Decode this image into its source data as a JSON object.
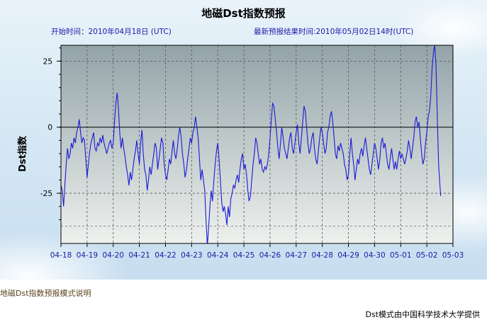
{
  "page": {
    "title": "地磁Dst指数预报",
    "start_time": "开始时间：2010年04月18日 (UTC)",
    "end_time": "最新预报结果时间:2010年05月02日14时(UTC)",
    "footer_link": "地磁Dst指数预报模式说明",
    "footer_credit": "Dst模式由中国科学技术大学提供"
  },
  "colors": {
    "line": "#1a1ad6",
    "plot_top": "#93a3a8",
    "plot_bottom": "#eef1ee",
    "grid": "#555555"
  },
  "chart_data": {
    "type": "line",
    "title": "地磁Dst指数预报",
    "ylabel": "Dst指数",
    "xlabel": "",
    "x_ticks": [
      "04-18",
      "04-19",
      "04-20",
      "04-21",
      "04-22",
      "04-23",
      "04-24",
      "04-25",
      "04-26",
      "04-27",
      "04-28",
      "04-29",
      "04-30",
      "05-01",
      "05-02",
      "05-03"
    ],
    "y_ticks": [
      25,
      0,
      -25
    ],
    "xlim": [
      0,
      15
    ],
    "ylim": [
      -44,
      31
    ],
    "grid": true,
    "zero_line": true,
    "series": [
      {
        "values": [
          [
            0.0,
            -22
          ],
          [
            0.05,
            -24
          ],
          [
            0.1,
            -30
          ],
          [
            0.15,
            -22
          ],
          [
            0.2,
            -14
          ],
          [
            0.25,
            -8
          ],
          [
            0.3,
            -12
          ],
          [
            0.35,
            -10
          ],
          [
            0.4,
            -6
          ],
          [
            0.45,
            -8
          ],
          [
            0.5,
            -4
          ],
          [
            0.55,
            -6
          ],
          [
            0.6,
            -2
          ],
          [
            0.65,
            0
          ],
          [
            0.7,
            3
          ],
          [
            0.75,
            -2
          ],
          [
            0.8,
            -6
          ],
          [
            0.85,
            -4
          ],
          [
            0.9,
            -5
          ],
          [
            0.95,
            -12
          ],
          [
            1.0,
            -19
          ],
          [
            1.05,
            -14
          ],
          [
            1.1,
            -9
          ],
          [
            1.15,
            -6
          ],
          [
            1.2,
            -4
          ],
          [
            1.25,
            -2
          ],
          [
            1.3,
            -8
          ],
          [
            1.35,
            -9
          ],
          [
            1.4,
            -6
          ],
          [
            1.45,
            -7
          ],
          [
            1.5,
            -4
          ],
          [
            1.55,
            -6
          ],
          [
            1.6,
            -3
          ],
          [
            1.65,
            -6
          ],
          [
            1.7,
            -8
          ],
          [
            1.75,
            -10
          ],
          [
            1.8,
            -8
          ],
          [
            1.85,
            -6
          ],
          [
            1.9,
            -5
          ],
          [
            1.95,
            -8
          ],
          [
            2.0,
            -6
          ],
          [
            2.05,
            2
          ],
          [
            2.1,
            9
          ],
          [
            2.15,
            13
          ],
          [
            2.2,
            7
          ],
          [
            2.25,
            -2
          ],
          [
            2.3,
            -8
          ],
          [
            2.35,
            -4
          ],
          [
            2.4,
            -8
          ],
          [
            2.45,
            -11
          ],
          [
            2.5,
            -15
          ],
          [
            2.55,
            -18
          ],
          [
            2.6,
            -22
          ],
          [
            2.65,
            -17
          ],
          [
            2.7,
            -20
          ],
          [
            2.75,
            -16
          ],
          [
            2.8,
            -12
          ],
          [
            2.85,
            -9
          ],
          [
            2.9,
            -5
          ],
          [
            2.95,
            -10
          ],
          [
            3.0,
            -14
          ],
          [
            3.05,
            -6
          ],
          [
            3.1,
            -1
          ],
          [
            3.15,
            -10
          ],
          [
            3.2,
            -16
          ],
          [
            3.25,
            -18
          ],
          [
            3.3,
            -24
          ],
          [
            3.35,
            -20
          ],
          [
            3.4,
            -15
          ],
          [
            3.45,
            -18
          ],
          [
            3.5,
            -14
          ],
          [
            3.55,
            -10
          ],
          [
            3.6,
            -6
          ],
          [
            3.65,
            -8
          ],
          [
            3.7,
            -16
          ],
          [
            3.75,
            -12
          ],
          [
            3.8,
            -8
          ],
          [
            3.85,
            -4
          ],
          [
            3.9,
            -6
          ],
          [
            3.95,
            -14
          ],
          [
            4.0,
            -18
          ],
          [
            4.05,
            -20
          ],
          [
            4.1,
            -16
          ],
          [
            4.15,
            -12
          ],
          [
            4.2,
            -14
          ],
          [
            4.25,
            -9
          ],
          [
            4.3,
            -5
          ],
          [
            4.35,
            -10
          ],
          [
            4.4,
            -12
          ],
          [
            4.45,
            -8
          ],
          [
            4.5,
            -3
          ],
          [
            4.55,
            0
          ],
          [
            4.6,
            -4
          ],
          [
            4.65,
            -10
          ],
          [
            4.7,
            -14
          ],
          [
            4.75,
            -19
          ],
          [
            4.8,
            -16
          ],
          [
            4.85,
            -12
          ],
          [
            4.9,
            -8
          ],
          [
            4.95,
            -4
          ],
          [
            5.0,
            -6
          ],
          [
            5.05,
            -2
          ],
          [
            5.1,
            0
          ],
          [
            5.15,
            4
          ],
          [
            5.2,
            0
          ],
          [
            5.25,
            -4
          ],
          [
            5.3,
            -12
          ],
          [
            5.35,
            -20
          ],
          [
            5.4,
            -16
          ],
          [
            5.45,
            -20
          ],
          [
            5.5,
            -24
          ],
          [
            5.55,
            -35
          ],
          [
            5.6,
            -45
          ],
          [
            5.65,
            -38
          ],
          [
            5.7,
            -30
          ],
          [
            5.75,
            -24
          ],
          [
            5.8,
            -28
          ],
          [
            5.85,
            -20
          ],
          [
            5.9,
            -14
          ],
          [
            5.95,
            -9
          ],
          [
            6.0,
            -6
          ],
          [
            6.05,
            -12
          ],
          [
            6.1,
            -20
          ],
          [
            6.15,
            -28
          ],
          [
            6.2,
            -32
          ],
          [
            6.25,
            -30
          ],
          [
            6.3,
            -33
          ],
          [
            6.35,
            -37
          ],
          [
            6.4,
            -30
          ],
          [
            6.45,
            -34
          ],
          [
            6.5,
            -27
          ],
          [
            6.55,
            -25
          ],
          [
            6.6,
            -22
          ],
          [
            6.65,
            -23
          ],
          [
            6.7,
            -20
          ],
          [
            6.75,
            -18
          ],
          [
            6.8,
            -21
          ],
          [
            6.85,
            -16
          ],
          [
            6.9,
            -12
          ],
          [
            6.95,
            -10
          ],
          [
            7.0,
            -16
          ],
          [
            7.05,
            -14
          ],
          [
            7.1,
            -18
          ],
          [
            7.15,
            -24
          ],
          [
            7.2,
            -28
          ],
          [
            7.25,
            -26
          ],
          [
            7.3,
            -20
          ],
          [
            7.35,
            -14
          ],
          [
            7.4,
            -10
          ],
          [
            7.45,
            -4
          ],
          [
            7.5,
            -6
          ],
          [
            7.55,
            -10
          ],
          [
            7.6,
            -14
          ],
          [
            7.65,
            -12
          ],
          [
            7.7,
            -16
          ],
          [
            7.75,
            -17
          ],
          [
            7.8,
            -15
          ],
          [
            7.85,
            -16
          ],
          [
            7.9,
            -14
          ],
          [
            7.95,
            -10
          ],
          [
            8.0,
            -4
          ],
          [
            8.05,
            3
          ],
          [
            8.1,
            9
          ],
          [
            8.15,
            8
          ],
          [
            8.2,
            3
          ],
          [
            8.25,
            -2
          ],
          [
            8.3,
            -8
          ],
          [
            8.35,
            -12
          ],
          [
            8.4,
            -6
          ],
          [
            8.45,
            0
          ],
          [
            8.5,
            -4
          ],
          [
            8.55,
            -8
          ],
          [
            8.6,
            -10
          ],
          [
            8.65,
            -12
          ],
          [
            8.7,
            -8
          ],
          [
            8.75,
            -4
          ],
          [
            8.8,
            -2
          ],
          [
            8.85,
            -8
          ],
          [
            8.9,
            -10
          ],
          [
            8.95,
            -6
          ],
          [
            9.0,
            -2
          ],
          [
            9.05,
            1
          ],
          [
            9.1,
            -6
          ],
          [
            9.15,
            -10
          ],
          [
            9.2,
            -4
          ],
          [
            9.25,
            2
          ],
          [
            9.3,
            8
          ],
          [
            9.35,
            6
          ],
          [
            9.4,
            0
          ],
          [
            9.45,
            -6
          ],
          [
            9.5,
            -10
          ],
          [
            9.55,
            -8
          ],
          [
            9.6,
            -4
          ],
          [
            9.65,
            -2
          ],
          [
            9.7,
            -8
          ],
          [
            9.75,
            -12
          ],
          [
            9.8,
            -14
          ],
          [
            9.85,
            -9
          ],
          [
            9.9,
            -4
          ],
          [
            9.95,
            0
          ],
          [
            10.0,
            -2
          ],
          [
            10.05,
            -6
          ],
          [
            10.1,
            -10
          ],
          [
            10.15,
            -8
          ],
          [
            10.2,
            -2
          ],
          [
            10.25,
            0
          ],
          [
            10.3,
            4
          ],
          [
            10.35,
            6
          ],
          [
            10.4,
            2
          ],
          [
            10.45,
            -4
          ],
          [
            10.5,
            -10
          ],
          [
            10.55,
            -12
          ],
          [
            10.6,
            -7
          ],
          [
            10.65,
            -9
          ],
          [
            10.7,
            -6
          ],
          [
            10.75,
            -8
          ],
          [
            10.8,
            -10
          ],
          [
            10.85,
            -14
          ],
          [
            10.9,
            -16
          ],
          [
            10.95,
            -20
          ],
          [
            11.0,
            -18
          ],
          [
            11.05,
            -10
          ],
          [
            11.1,
            -4
          ],
          [
            11.15,
            -10
          ],
          [
            11.2,
            -14
          ],
          [
            11.25,
            -20
          ],
          [
            11.3,
            -16
          ],
          [
            11.35,
            -12
          ],
          [
            11.4,
            -14
          ],
          [
            11.45,
            -10
          ],
          [
            11.5,
            -8
          ],
          [
            11.55,
            -11
          ],
          [
            11.6,
            -7
          ],
          [
            11.65,
            -4
          ],
          [
            11.7,
            -8
          ],
          [
            11.75,
            -12
          ],
          [
            11.8,
            -16
          ],
          [
            11.85,
            -18
          ],
          [
            11.9,
            -14
          ],
          [
            11.95,
            -10
          ],
          [
            12.0,
            -6
          ],
          [
            12.05,
            -8
          ],
          [
            12.1,
            -12
          ],
          [
            12.15,
            -16
          ],
          [
            12.2,
            -12
          ],
          [
            12.25,
            -6
          ],
          [
            12.3,
            -4
          ],
          [
            12.35,
            -8
          ],
          [
            12.4,
            -6
          ],
          [
            12.45,
            -10
          ],
          [
            12.5,
            -14
          ],
          [
            12.55,
            -16
          ],
          [
            12.6,
            -12
          ],
          [
            12.65,
            -8
          ],
          [
            12.7,
            -12
          ],
          [
            12.75,
            -16
          ],
          [
            12.8,
            -13
          ],
          [
            12.85,
            -16
          ],
          [
            12.9,
            -12
          ],
          [
            12.95,
            -9
          ],
          [
            13.0,
            -12
          ],
          [
            13.05,
            -10
          ],
          [
            13.1,
            -12
          ],
          [
            13.15,
            -14
          ],
          [
            13.2,
            -12
          ],
          [
            13.25,
            -9
          ],
          [
            13.3,
            -5
          ],
          [
            13.35,
            -8
          ],
          [
            13.4,
            -12
          ],
          [
            13.45,
            -8
          ],
          [
            13.5,
            -4
          ],
          [
            13.55,
            2
          ],
          [
            13.6,
            4
          ],
          [
            13.65,
            0
          ],
          [
            13.7,
            2
          ],
          [
            13.75,
            -4
          ],
          [
            13.8,
            -10
          ],
          [
            13.85,
            -14
          ],
          [
            13.9,
            -12
          ],
          [
            13.95,
            -6
          ],
          [
            14.0,
            -2
          ],
          [
            14.05,
            4
          ],
          [
            14.1,
            6
          ],
          [
            14.15,
            12
          ],
          [
            14.2,
            22
          ],
          [
            14.25,
            28
          ],
          [
            14.3,
            31
          ],
          [
            14.35,
            24
          ],
          [
            14.4,
            4
          ],
          [
            14.45,
            -14
          ],
          [
            14.5,
            -22
          ],
          [
            14.53,
            -26
          ]
        ]
      }
    ]
  }
}
